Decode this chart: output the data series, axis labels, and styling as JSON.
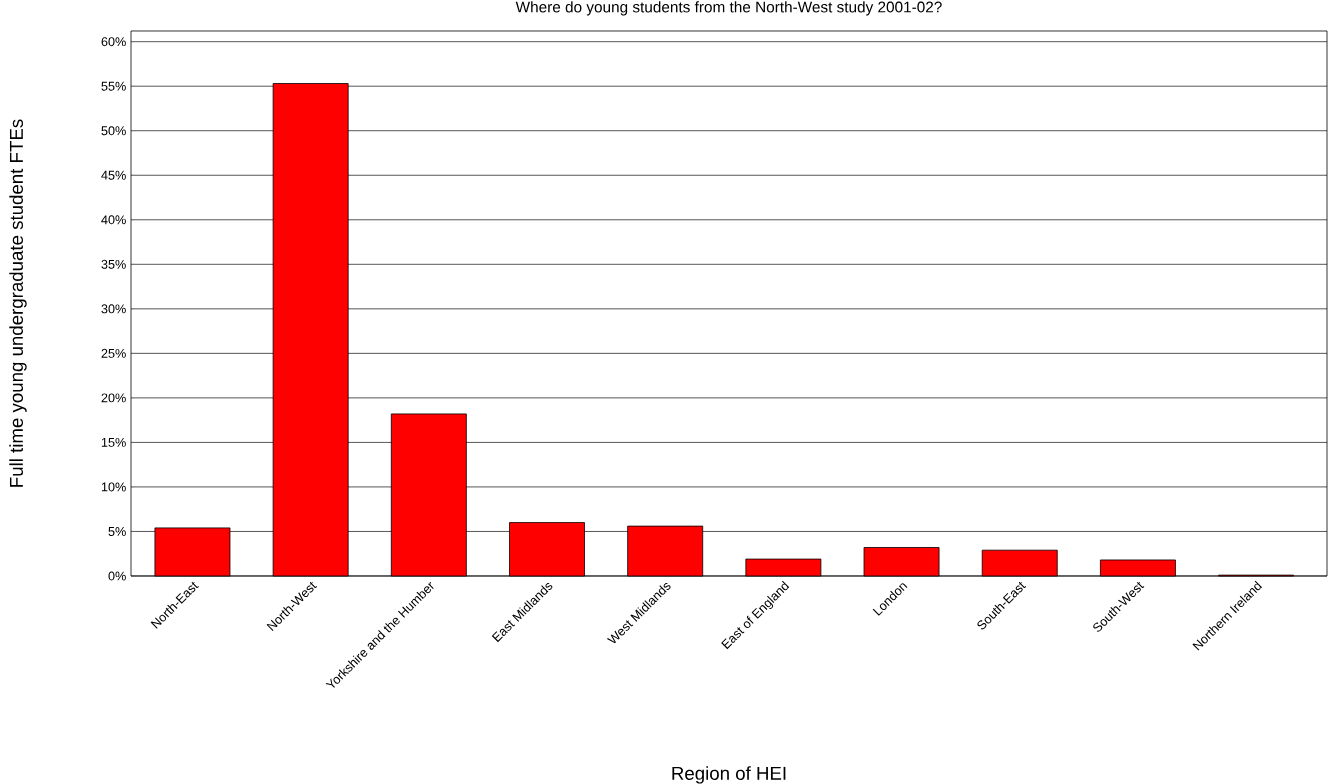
{
  "chart_data": {
    "type": "bar",
    "title": "Where do young students from the North-West study 2001-02?",
    "xlabel": "Region of HEI",
    "ylabel": "Full time young undergraduate student FTEs",
    "categories": [
      "North-East",
      "North-West",
      "Yorkshire and the Humber",
      "East Midlands",
      "West Midlands",
      "East of England",
      "London",
      "South-East",
      "South-West",
      "Northern Ireland"
    ],
    "values": [
      5.4,
      55.3,
      18.2,
      6.0,
      5.6,
      1.9,
      3.2,
      2.9,
      1.8,
      0.1
    ],
    "color": "#ff0000",
    "ylim": [
      0,
      61.2
    ],
    "yticks": [
      {
        "value": 0,
        "label": "0%"
      },
      {
        "value": 5,
        "label": "5%"
      },
      {
        "value": 10,
        "label": "10%"
      },
      {
        "value": 15,
        "label": "15%"
      },
      {
        "value": 20,
        "label": "20%"
      },
      {
        "value": 25,
        "label": "25%"
      },
      {
        "value": 30,
        "label": "30%"
      },
      {
        "value": 35,
        "label": "35%"
      },
      {
        "value": 40,
        "label": "40%"
      },
      {
        "value": 45,
        "label": "45%"
      },
      {
        "value": 50,
        "label": "50%"
      },
      {
        "value": 55,
        "label": "55%"
      },
      {
        "value": 60,
        "label": "60%"
      }
    ],
    "grid": "y"
  }
}
